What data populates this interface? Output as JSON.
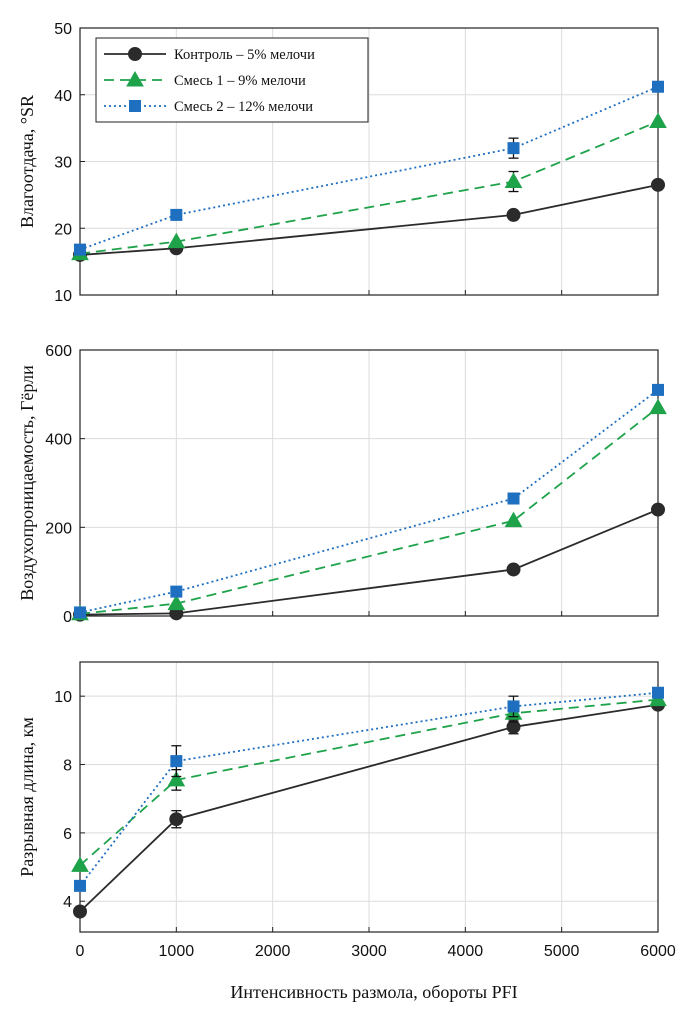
{
  "figure": {
    "xlabel": "Интенсивность размола, обороты PFI"
  },
  "styles": {
    "grid_color": "#dcdcdc",
    "axes_color": "#222222"
  },
  "series_styles": [
    {
      "key": "control",
      "color": "#2b2b2b",
      "marker": "circle",
      "dash": "solid"
    },
    {
      "key": "mix1",
      "color": "#1ea34a",
      "marker": "triangle",
      "dash": "dashed"
    },
    {
      "key": "mix2",
      "color": "#1f6fc1",
      "marker": "square",
      "dash": "dotted"
    }
  ],
  "chart_data": [
    {
      "type": "line",
      "ylabel": "Влагоотдача, °SR",
      "xlim": [
        0,
        6000
      ],
      "ylim": [
        10,
        50
      ],
      "xticks": [
        0,
        1000,
        2000,
        3000,
        4000,
        5000,
        6000
      ],
      "yticks": [
        10,
        20,
        30,
        40,
        50
      ],
      "grid": true,
      "legend_position": "top-left",
      "x": [
        0,
        1000,
        4500,
        6000
      ],
      "series": [
        {
          "name": "Контроль – 5% мелочи",
          "values": [
            16,
            17,
            22,
            26.5
          ],
          "errors": [
            0,
            0,
            0,
            0
          ]
        },
        {
          "name": "Смесь 1 – 9% мелочи",
          "values": [
            16.2,
            18,
            27,
            36
          ],
          "errors": [
            0,
            0,
            1.5,
            0
          ]
        },
        {
          "name": "Смесь 2 – 12% мелочи",
          "values": [
            16.8,
            22,
            32,
            41.2
          ],
          "errors": [
            0,
            0,
            1.5,
            0
          ]
        }
      ]
    },
    {
      "type": "line",
      "ylabel": "Воздухопроницаемость, Гёрли",
      "xlim": [
        0,
        6000
      ],
      "ylim": [
        0,
        600
      ],
      "xticks": [
        0,
        1000,
        2000,
        3000,
        4000,
        5000,
        6000
      ],
      "yticks": [
        0,
        200,
        400,
        600
      ],
      "grid": true,
      "x": [
        0,
        1000,
        4500,
        6000
      ],
      "series": [
        {
          "name": "Контроль – 5% мелочи",
          "values": [
            3,
            6,
            105,
            240
          ],
          "errors": [
            0,
            0,
            0,
            0
          ]
        },
        {
          "name": "Смесь 1 – 9% мелочи",
          "values": [
            5,
            28,
            215,
            470
          ],
          "errors": [
            0,
            0,
            0,
            0
          ]
        },
        {
          "name": "Смесь 2 – 12% мелочи",
          "values": [
            8,
            55,
            265,
            510
          ],
          "errors": [
            0,
            0,
            0,
            0
          ]
        }
      ]
    },
    {
      "type": "line",
      "ylabel": "Разрывная длина, км",
      "xlim": [
        0,
        6000
      ],
      "ylim": [
        3.1,
        11
      ],
      "xticks": [
        0,
        1000,
        2000,
        3000,
        4000,
        5000,
        6000
      ],
      "xticklabels": [
        "0",
        "1000",
        "2000",
        "3000",
        "4000",
        "5000",
        "6000"
      ],
      "yticks": [
        4,
        6,
        8,
        10
      ],
      "grid": true,
      "x": [
        0,
        1000,
        4500,
        6000
      ],
      "series": [
        {
          "name": "Контроль – 5% мелочи",
          "values": [
            3.7,
            6.4,
            9.1,
            9.75
          ],
          "errors": [
            0,
            0.25,
            0.2,
            0
          ]
        },
        {
          "name": "Смесь 1 – 9% мелочи",
          "values": [
            5.05,
            7.55,
            9.5,
            9.9
          ],
          "errors": [
            0,
            0.3,
            0.25,
            0
          ]
        },
        {
          "name": "Смесь 2 – 12% мелочи",
          "values": [
            4.45,
            8.1,
            9.7,
            10.1
          ],
          "errors": [
            0,
            0.45,
            0.3,
            0
          ]
        }
      ]
    }
  ]
}
